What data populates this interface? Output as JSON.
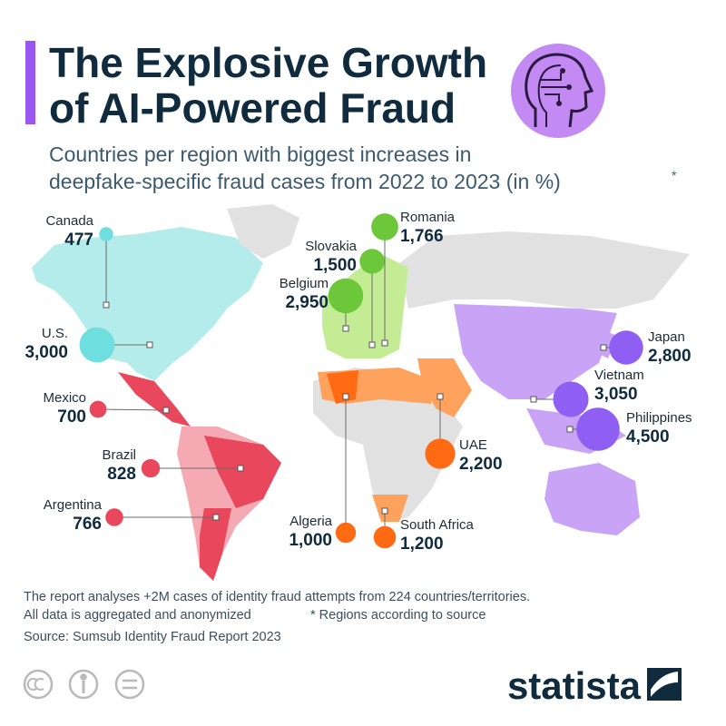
{
  "header": {
    "title_lines": [
      "The Explosive Growth",
      "of AI-Powered Fraud"
    ],
    "subtitle_lines": [
      "Countries per region with biggest increases in",
      "deepfake-specific fraud cases from 2022 to 2023 (in %)"
    ],
    "subtitle_mark": "*"
  },
  "map": {
    "countries": [
      {
        "name": "Canada",
        "value": 477,
        "value_label": "477",
        "color": "#6fdede"
      },
      {
        "name": "U.S.",
        "value": 3000,
        "value_label": "3,000",
        "color": "#6fdede"
      },
      {
        "name": "Mexico",
        "value": 700,
        "value_label": "700",
        "color": "#e8475c"
      },
      {
        "name": "Brazil",
        "value": 828,
        "value_label": "828",
        "color": "#e8475c"
      },
      {
        "name": "Argentina",
        "value": 766,
        "value_label": "766",
        "color": "#e8475c"
      },
      {
        "name": "Belgium",
        "value": 2950,
        "value_label": "2,950",
        "color": "#6cc83a"
      },
      {
        "name": "Slovakia",
        "value": 1500,
        "value_label": "1,500",
        "color": "#6cc83a"
      },
      {
        "name": "Romania",
        "value": 1766,
        "value_label": "1,766",
        "color": "#6cc83a"
      },
      {
        "name": "Algeria",
        "value": 1000,
        "value_label": "1,000",
        "color": "#ff6a13"
      },
      {
        "name": "South Africa",
        "value": 1200,
        "value_label": "1,200",
        "color": "#ff6a13"
      },
      {
        "name": "UAE",
        "value": 2200,
        "value_label": "2,200",
        "color": "#ff6a13"
      },
      {
        "name": "Japan",
        "value": 2800,
        "value_label": "2,800",
        "color": "#8f5ef2"
      },
      {
        "name": "Vietnam",
        "value": 3050,
        "value_label": "3,050",
        "color": "#8f5ef2"
      },
      {
        "name": "Philippines",
        "value": 4500,
        "value_label": "4,500",
        "color": "#8f5ef2"
      }
    ]
  },
  "footer": {
    "note": "The report analyses +2M cases of identity fraud attempts from 224 countries/territories.",
    "note2": "All data is aggregated and anonymized",
    "regions_note": "* Regions according to source",
    "source": "Source: Sumsub Identity Fraud Report 2023",
    "brand": "statista"
  }
}
